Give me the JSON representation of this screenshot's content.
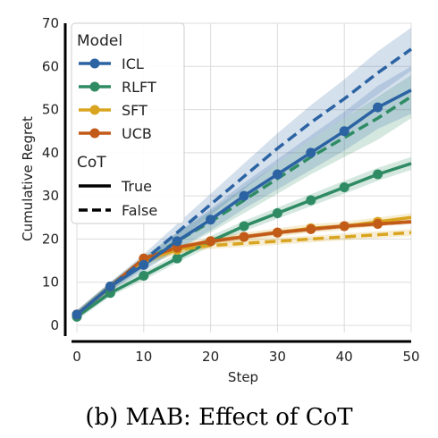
{
  "caption": "(b)  MAB: Effect of CoT",
  "chart_data": {
    "type": "line",
    "xlabel": "Step",
    "ylabel": "Cumulative Regret",
    "xlim": [
      0,
      50
    ],
    "ylim": [
      0,
      70
    ],
    "xticks": [
      "0",
      "10",
      "20",
      "30",
      "40",
      "50"
    ],
    "yticks": [
      "0",
      "10",
      "20",
      "30",
      "40",
      "50",
      "60",
      "70"
    ],
    "grid": true,
    "legend": {
      "placement": "top-left",
      "model_title": "Model",
      "models": [
        {
          "name": "ICL",
          "color": "#2b63a3"
        },
        {
          "name": "RLFT",
          "color": "#2e8b63"
        },
        {
          "name": "SFT",
          "color": "#d9a520"
        },
        {
          "name": "UCB",
          "color": "#c25a18"
        }
      ],
      "cot_title": "CoT",
      "cot": [
        {
          "name": "True",
          "style": "solid"
        },
        {
          "name": "False",
          "style": "dashed"
        }
      ]
    },
    "x": [
      0,
      5,
      10,
      15,
      20,
      25,
      30,
      35,
      40,
      45,
      50
    ],
    "series": [
      {
        "name": "ICL",
        "cot": "True",
        "color": "#2b63a3",
        "values": [
          2.5,
          9,
          14,
          19.5,
          24.5,
          30,
          35,
          40,
          45,
          50.5,
          54.5
        ],
        "band": [
          1,
          1,
          1.5,
          2,
          2.5,
          3,
          3.5,
          4,
          4.5,
          5,
          5.5
        ]
      },
      {
        "name": "ICL",
        "cot": "False",
        "color": "#2b63a3",
        "values": [
          2.5,
          9,
          15,
          21.5,
          28,
          34.5,
          41,
          47,
          52.5,
          58.5,
          64
        ],
        "band": [
          1,
          1,
          1.5,
          2,
          2.5,
          3,
          3.5,
          4,
          4.5,
          5,
          5
        ]
      },
      {
        "name": "RLFT",
        "cot": "True",
        "color": "#2e8b63",
        "values": [
          2,
          7.5,
          11.5,
          15.5,
          19.5,
          23,
          26,
          29,
          32,
          35,
          37.5
        ],
        "band": [
          0.8,
          0.8,
          1,
          1,
          1.2,
          1.2,
          1.3,
          1.4,
          1.5,
          1.5,
          1.5
        ]
      },
      {
        "name": "RLFT",
        "cot": "False",
        "color": "#2e8b63",
        "values": [
          2.5,
          9,
          14.5,
          19.5,
          24,
          29,
          34,
          39,
          43.5,
          48,
          53
        ],
        "band": [
          1,
          1,
          1.5,
          2,
          2.5,
          3,
          3.5,
          4,
          4.5,
          5,
          5
        ]
      },
      {
        "name": "SFT",
        "cot": "True",
        "color": "#d9a520",
        "values": [
          2.5,
          9,
          15,
          17.5,
          19.5,
          20.5,
          21.5,
          22.5,
          23,
          24,
          25
        ],
        "band": [
          0.8,
          0.8,
          1,
          1,
          1,
          1,
          1,
          1,
          1,
          1,
          1
        ]
      },
      {
        "name": "SFT",
        "cot": "False",
        "color": "#d9a520",
        "values": [
          2.5,
          9,
          15,
          17.5,
          18.5,
          19,
          19.5,
          20,
          20.5,
          21,
          21.5
        ],
        "band": [
          0.8,
          0.8,
          0.8,
          0.8,
          0.8,
          0.8,
          0.8,
          0.8,
          0.8,
          0.8,
          0.8
        ]
      },
      {
        "name": "UCB",
        "cot": "True",
        "color": "#c25a18",
        "values": [
          2.5,
          9,
          15.5,
          18,
          19.5,
          20.5,
          21.5,
          22.3,
          23,
          23.5,
          24
        ],
        "band": [
          0.5,
          0.5,
          0.5,
          0.5,
          0.5,
          0.5,
          0.5,
          0.5,
          0.5,
          0.5,
          0.5
        ]
      },
      {
        "name": "UCB",
        "cot": "False",
        "color": "#c25a18",
        "values": [
          2.5,
          9,
          15.5,
          18,
          19.5,
          20.5,
          21.5,
          22.3,
          23,
          23.5,
          24
        ],
        "band": [
          0.5,
          0.5,
          0.5,
          0.5,
          0.5,
          0.5,
          0.5,
          0.5,
          0.5,
          0.5,
          0.5
        ]
      }
    ],
    "marker_x": [
      0,
      5,
      10,
      15,
      20,
      25,
      30,
      35,
      40,
      45
    ]
  }
}
